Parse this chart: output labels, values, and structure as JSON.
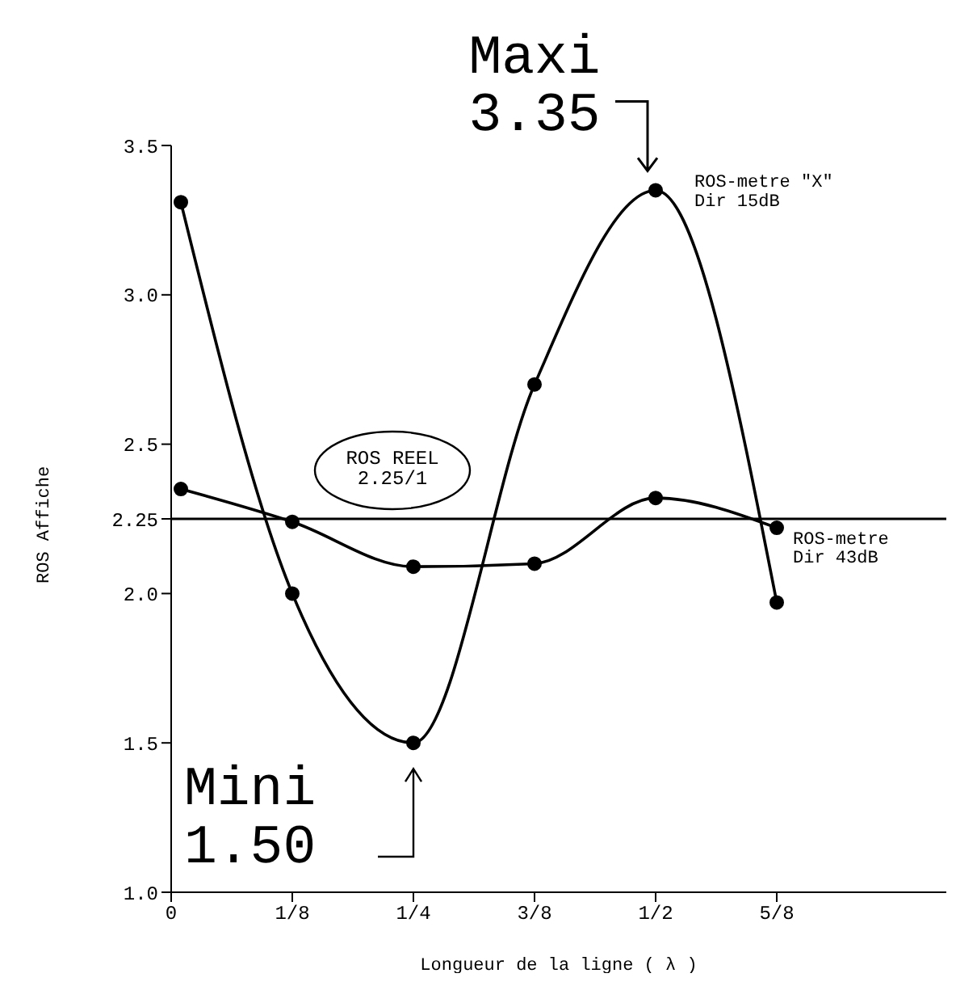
{
  "chart_data": {
    "type": "line",
    "xlabel": "Longueur de la ligne ( λ )",
    "ylabel": "ROS Affiche",
    "x": [
      0.01,
      0.125,
      0.25,
      0.375,
      0.5,
      0.625
    ],
    "series": [
      {
        "name": "ROS-metre \"X\"\nDir 15dB",
        "color": "#000000",
        "values": [
          3.31,
          2.0,
          1.5,
          2.7,
          3.35,
          1.97
        ]
      },
      {
        "name": "ROS-metre\nDir 43dB",
        "color": "#000000",
        "values": [
          2.35,
          2.24,
          2.09,
          2.1,
          2.32,
          2.22
        ]
      }
    ],
    "xlim": [
      0,
      0.8
    ],
    "xticks": [
      {
        "value": 0,
        "label": "0"
      },
      {
        "value": 0.125,
        "label": "1/8"
      },
      {
        "value": 0.25,
        "label": "1/4"
      },
      {
        "value": 0.375,
        "label": "3/8"
      },
      {
        "value": 0.5,
        "label": "1/2"
      },
      {
        "value": 0.625,
        "label": "5/8"
      }
    ],
    "ylim": [
      1,
      3.5
    ],
    "yticks": [
      {
        "value": 1,
        "label": "1.0"
      },
      {
        "value": 1.5,
        "label": "1.5"
      },
      {
        "value": 2,
        "label": "2.0"
      },
      2.25,
      2.5,
      {
        "value": 3,
        "label": "3.0"
      },
      3.5
    ],
    "ref_lines": [
      {
        "axis": "y",
        "value": 2.25,
        "label": "ROS REEL\n2.25/1",
        "color": "#000000"
      }
    ],
    "annotations": [
      {
        "text": "Maxi\n3.35",
        "x": 0.5,
        "y": 3.35
      },
      {
        "text": "Mini\n1.50",
        "x": 0.25,
        "y": 1.5
      }
    ],
    "marker": "circle",
    "line_style": "solid",
    "grid": false,
    "legend": false
  }
}
